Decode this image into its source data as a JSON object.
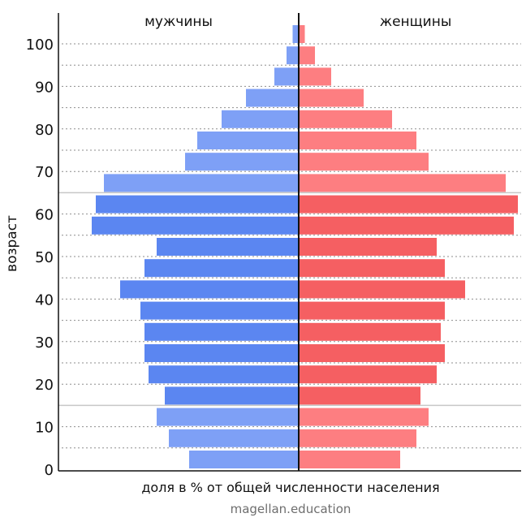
{
  "chart_data": {
    "type": "bar",
    "orientation": "horizontal",
    "subtype": "population-pyramid",
    "title": "",
    "xlabel": "доля в % от общей численности населения",
    "ylabel": "возраст",
    "source": "magellan.education",
    "yticks": [
      "0",
      "10",
      "20",
      "30",
      "40",
      "50",
      "60",
      "70",
      "80",
      "90",
      "100"
    ],
    "age_groups": [
      "0-4",
      "5-9",
      "10-14",
      "15-19",
      "20-24",
      "25-29",
      "30-34",
      "35-39",
      "40-44",
      "45-49",
      "50-54",
      "55-59",
      "60-64",
      "65-69",
      "70-74",
      "75-79",
      "80-84",
      "85-89",
      "90-94",
      "95-99",
      "100+"
    ],
    "series": [
      {
        "name": "мужчины",
        "side": "left",
        "values": [
          2.7,
          3.2,
          3.5,
          3.3,
          3.7,
          3.8,
          3.8,
          3.9,
          4.4,
          3.8,
          3.5,
          5.1,
          5.0,
          4.8,
          2.8,
          2.5,
          1.9,
          1.3,
          0.6,
          0.3,
          0.15
        ]
      },
      {
        "name": "женщины",
        "side": "right",
        "values": [
          2.5,
          2.9,
          3.2,
          3.0,
          3.4,
          3.6,
          3.5,
          3.6,
          4.1,
          3.6,
          3.4,
          5.3,
          5.4,
          5.1,
          3.2,
          2.9,
          2.3,
          1.6,
          0.8,
          0.4,
          0.15
        ]
      }
    ],
    "bands": [
      {
        "name": "working-age",
        "age_range": [
          15,
          65
        ],
        "left_color": "#5b86f1",
        "right_color": "#f55f62"
      },
      {
        "name": "young-and-old",
        "age_range": "outside",
        "left_color": "#7ea0f6",
        "right_color": "#fd7e81"
      }
    ],
    "axis_range_percent": [
      0,
      5.5
    ],
    "grid": true,
    "legend_placement": "top",
    "colors": {
      "axis": "#111111",
      "grid_dotted": "#8e8e8e",
      "separator": "#c7c7c7",
      "source_text": "#6e6e6e"
    }
  }
}
